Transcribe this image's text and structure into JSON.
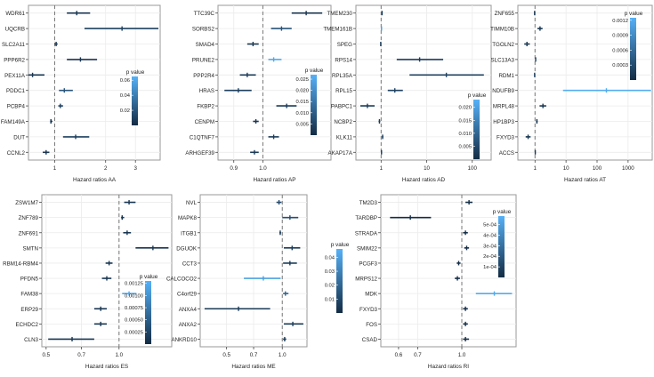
{
  "figure": {
    "legend_title": "p value"
  },
  "chart_data": [
    {
      "id": "AA",
      "type": "forest",
      "title": "",
      "xlabel": "Hazard ratios AA",
      "ylabel": "",
      "xscale": "log",
      "xlim": [
        0.7,
        4.2
      ],
      "xticks": [
        1,
        2,
        3
      ],
      "xtick_labels": [
        "1",
        "2",
        "3"
      ],
      "reference_line": 1,
      "legend": {
        "title": "p value",
        "placement": "right",
        "range": [
          0,
          0.065
        ],
        "ticks": [
          0.02,
          0.04,
          0.06
        ],
        "tick_labels": [
          "0.02",
          "0.04",
          "0.06"
        ]
      },
      "rows": [
        {
          "label": "WDR61",
          "hr": 1.35,
          "lower": 1.18,
          "upper": 1.62,
          "p": 0.005
        },
        {
          "label": "UQCRB",
          "hr": 2.5,
          "lower": 1.5,
          "upper": 4.1,
          "p": 0.01
        },
        {
          "label": "SLC2A11",
          "hr": 1.02,
          "lower": 1.0,
          "upper": 1.04,
          "p": 0.005
        },
        {
          "label": "PPP6R2",
          "hr": 1.42,
          "lower": 1.18,
          "upper": 1.78,
          "p": 0.005
        },
        {
          "label": "PEX11A",
          "hr": 0.74,
          "lower": 0.63,
          "upper": 0.87,
          "p": 0.005
        },
        {
          "label": "PDDC1",
          "hr": 1.14,
          "lower": 1.06,
          "upper": 1.28,
          "p": 0.02
        },
        {
          "label": "PCBP4",
          "hr": 1.08,
          "lower": 1.05,
          "upper": 1.12,
          "p": 0.01
        },
        {
          "label": "FAM149A",
          "hr": 0.95,
          "lower": 0.94,
          "upper": 0.97,
          "p": 0.005
        },
        {
          "label": "DUT",
          "hr": 1.33,
          "lower": 1.12,
          "upper": 1.6,
          "p": 0.01
        },
        {
          "label": "CCNL2",
          "hr": 0.89,
          "lower": 0.85,
          "upper": 0.93,
          "p": 0.005
        }
      ]
    },
    {
      "id": "AP",
      "type": "forest",
      "title": "",
      "xlabel": "Hazard ratios AP",
      "ylabel": "",
      "xscale": "log",
      "xlim": [
        0.85,
        1.28
      ],
      "xticks": [
        0.9,
        1.0
      ],
      "xtick_labels": [
        "0.9",
        "1.0"
      ],
      "reference_line": 1,
      "legend": {
        "title": "p value",
        "placement": "right",
        "range": [
          0,
          0.027
        ],
        "ticks": [
          0.005,
          0.01,
          0.015,
          0.02,
          0.025
        ],
        "tick_labels": [
          "0.005",
          "0.010",
          "0.015",
          "0.020",
          "0.025"
        ]
      },
      "rows": [
        {
          "label": "TTC39C",
          "hr": 1.17,
          "lower": 1.11,
          "upper": 1.24,
          "p": 0.002
        },
        {
          "label": "SORBS2",
          "hr": 1.07,
          "lower": 1.03,
          "upper": 1.11,
          "p": 0.008
        },
        {
          "label": "SMAD4",
          "hr": 0.965,
          "lower": 0.945,
          "upper": 0.985,
          "p": 0.002
        },
        {
          "label": "PRUNE2",
          "hr": 1.04,
          "lower": 1.02,
          "upper": 1.07,
          "p": 0.025
        },
        {
          "label": "PPP2R4",
          "hr": 0.945,
          "lower": 0.92,
          "upper": 0.975,
          "p": 0.003
        },
        {
          "label": "HRAS",
          "hr": 0.915,
          "lower": 0.87,
          "upper": 0.96,
          "p": 0.004
        },
        {
          "label": "FKBP2",
          "hr": 1.09,
          "lower": 1.05,
          "upper": 1.13,
          "p": 0.003
        },
        {
          "label": "CENPM",
          "hr": 0.975,
          "lower": 0.965,
          "upper": 0.985,
          "p": 0.002
        },
        {
          "label": "C1QTNF7",
          "hr": 1.04,
          "lower": 1.02,
          "upper": 1.06,
          "p": 0.003
        },
        {
          "label": "ARHGEF39",
          "hr": 0.97,
          "lower": 0.955,
          "upper": 0.985,
          "p": 0.003
        }
      ]
    },
    {
      "id": "AD",
      "type": "forest",
      "title": "",
      "xlabel": "Hazard ratios AD",
      "ylabel": "",
      "xscale": "log",
      "xlim": [
        0.28,
        260
      ],
      "xticks": [
        1,
        10,
        100
      ],
      "xtick_labels": [
        "1",
        "10",
        "100"
      ],
      "reference_line": 1,
      "legend": {
        "title": "p value",
        "placement": "right",
        "range": [
          0,
          0.023
        ],
        "ticks": [
          0.005,
          0.01,
          0.015,
          0.02
        ],
        "tick_labels": [
          "0.005",
          "0.010",
          "0.015",
          "0.020"
        ]
      },
      "rows": [
        {
          "label": "TMEM230",
          "hr": 1.05,
          "lower": 1.02,
          "upper": 1.08,
          "p": 0.003
        },
        {
          "label": "TMEM161B",
          "hr": 1.02,
          "lower": 1.0,
          "upper": 1.04,
          "p": 0.02
        },
        {
          "label": "SPEG",
          "hr": 0.98,
          "lower": 0.96,
          "upper": 1.0,
          "p": 0.003
        },
        {
          "label": "RPS14",
          "hr": 7.0,
          "lower": 2.2,
          "upper": 23,
          "p": 0.003
        },
        {
          "label": "RPL35A",
          "hr": 27,
          "lower": 4.2,
          "upper": 180,
          "p": 0.004
        },
        {
          "label": "RPL15",
          "hr": 2.0,
          "lower": 1.4,
          "upper": 3.0,
          "p": 0.004
        },
        {
          "label": "PABPC1",
          "hr": 0.5,
          "lower": 0.35,
          "upper": 0.72,
          "p": 0.003
        },
        {
          "label": "NCBP2",
          "hr": 0.92,
          "lower": 0.88,
          "upper": 0.96,
          "p": 0.003
        },
        {
          "label": "KLK11",
          "hr": 1.08,
          "lower": 1.04,
          "upper": 1.12,
          "p": 0.003
        },
        {
          "label": "AKAP17A",
          "hr": 1.02,
          "lower": 1.0,
          "upper": 1.04,
          "p": 0.003
        }
      ]
    },
    {
      "id": "AT",
      "type": "forest",
      "title": "",
      "xlabel": "Hazard ratios AT",
      "ylabel": "",
      "xscale": "log",
      "xlim": [
        0.28,
        6000
      ],
      "xticks": [
        1,
        10,
        100,
        1000
      ],
      "xtick_labels": [
        "1",
        "10",
        "100",
        "1000"
      ],
      "reference_line": 1,
      "legend": {
        "title": "p value",
        "placement": "top-right",
        "range": [
          0,
          0.00125
        ],
        "ticks": [
          0.0003,
          0.0006,
          0.0009,
          0.0012
        ],
        "tick_labels": [
          "0.0003",
          "0.0006",
          "0.0009",
          "0.0012"
        ]
      },
      "rows": [
        {
          "label": "ZNF655",
          "hr": 0.97,
          "lower": 0.94,
          "upper": 1.0,
          "p": 0.0001
        },
        {
          "label": "TIMM10B",
          "hr": 1.45,
          "lower": 1.2,
          "upper": 1.75,
          "p": 0.0001
        },
        {
          "label": "TGOLN2",
          "hr": 0.55,
          "lower": 0.45,
          "upper": 0.68,
          "p": 0.0001
        },
        {
          "label": "SLC13A3",
          "hr": 1.05,
          "lower": 1.02,
          "upper": 1.08,
          "p": 0.0002
        },
        {
          "label": "RDM1",
          "hr": 0.97,
          "lower": 0.95,
          "upper": 0.99,
          "p": 0.0002
        },
        {
          "label": "NDUFB9",
          "hr": 200,
          "lower": 8,
          "upper": 5500,
          "p": 0.0012
        },
        {
          "label": "MRPL48",
          "hr": 1.8,
          "lower": 1.4,
          "upper": 2.3,
          "p": 0.0001
        },
        {
          "label": "HP1BP3",
          "hr": 1.15,
          "lower": 1.08,
          "upper": 1.22,
          "p": 0.0001
        },
        {
          "label": "FXYD3",
          "hr": 0.6,
          "lower": 0.5,
          "upper": 0.72,
          "p": 0.0001
        },
        {
          "label": "ACCS",
          "hr": 1.02,
          "lower": 1.0,
          "upper": 1.04,
          "p": 0.0001
        }
      ]
    },
    {
      "id": "ES",
      "type": "forest",
      "title": "",
      "xlabel": "Hazard ratios ES",
      "ylabel": "",
      "xscale": "log",
      "xlim": [
        0.48,
        1.65
      ],
      "xticks": [
        0.5,
        0.7,
        1.0
      ],
      "xtick_labels": [
        "0.5",
        "0.7",
        "1.0"
      ],
      "reference_line": 1,
      "legend": {
        "title": "p value",
        "placement": "right",
        "range": [
          0,
          0.0013
        ],
        "ticks": [
          0.00025,
          0.0005,
          0.00075,
          0.001,
          0.00125
        ],
        "tick_labels": [
          "0.00025",
          "0.00050",
          "0.00075",
          "0.00100",
          "0.00125"
        ]
      },
      "rows": [
        {
          "label": "ZSW1M7",
          "hr": 1.1,
          "lower": 1.05,
          "upper": 1.17,
          "p": 0.0001
        },
        {
          "label": "ZNF789",
          "hr": 1.03,
          "lower": 1.02,
          "upper": 1.05,
          "p": 0.0001
        },
        {
          "label": "ZNF691",
          "hr": 1.08,
          "lower": 1.04,
          "upper": 1.12,
          "p": 0.0001
        },
        {
          "label": "SMTN",
          "hr": 1.38,
          "lower": 1.17,
          "upper": 1.6,
          "p": 0.0001
        },
        {
          "label": "RBM14-RBM4",
          "hr": 0.91,
          "lower": 0.88,
          "upper": 0.94,
          "p": 0.0001
        },
        {
          "label": "PFDN5",
          "hr": 0.89,
          "lower": 0.85,
          "upper": 0.93,
          "p": 0.0001
        },
        {
          "label": "FAM38",
          "hr": 1.1,
          "lower": 1.03,
          "upper": 1.18,
          "p": 0.0012
        },
        {
          "label": "ERP29",
          "hr": 0.84,
          "lower": 0.79,
          "upper": 0.89,
          "p": 0.0001
        },
        {
          "label": "ECHDC2",
          "hr": 0.84,
          "lower": 0.79,
          "upper": 0.89,
          "p": 0.0001
        },
        {
          "label": "CLN3",
          "hr": 0.64,
          "lower": 0.51,
          "upper": 0.79,
          "p": 0.0001
        }
      ]
    },
    {
      "id": "ME",
      "type": "forest",
      "title": "",
      "xlabel": "Hazard ratios ME",
      "ylabel": "",
      "xscale": "log",
      "xlim": [
        0.36,
        1.36
      ],
      "xticks": [
        0.5,
        0.7,
        1.0
      ],
      "xtick_labels": [
        "0.5",
        "0.7",
        "1.0"
      ],
      "reference_line": 1,
      "legend": {
        "title": "p value",
        "placement": "right",
        "range": [
          0,
          0.046
        ],
        "ticks": [
          0.01,
          0.02,
          0.03,
          0.04
        ],
        "tick_labels": [
          "0.01",
          "0.02",
          "0.03",
          "0.04"
        ]
      },
      "rows": [
        {
          "label": "NVL",
          "hr": 0.96,
          "lower": 0.93,
          "upper": 0.99,
          "p": 0.01
        },
        {
          "label": "MAPK8",
          "hr": 1.1,
          "lower": 1.0,
          "upper": 1.22,
          "p": 0.012
        },
        {
          "label": "ITGB1",
          "hr": 0.975,
          "lower": 0.965,
          "upper": 0.985,
          "p": 0.005
        },
        {
          "label": "DGUOK",
          "hr": 1.13,
          "lower": 1.02,
          "upper": 1.25,
          "p": 0.005
        },
        {
          "label": "CCT3",
          "hr": 1.1,
          "lower": 1.01,
          "upper": 1.2,
          "p": 0.005
        },
        {
          "label": "CALCOCO2",
          "hr": 0.79,
          "lower": 0.62,
          "upper": 0.98,
          "p": 0.04
        },
        {
          "label": "C4orf29",
          "hr": 1.04,
          "lower": 1.01,
          "upper": 1.08,
          "p": 0.02
        },
        {
          "label": "ANXA4",
          "hr": 0.58,
          "lower": 0.38,
          "upper": 0.86,
          "p": 0.005
        },
        {
          "label": "ANXA2",
          "hr": 1.14,
          "lower": 1.02,
          "upper": 1.3,
          "p": 0.005
        },
        {
          "label": "ANKRD10",
          "hr": 1.03,
          "lower": 1.01,
          "upper": 1.05,
          "p": 0.005
        }
      ]
    },
    {
      "id": "RI",
      "type": "forest",
      "title": "",
      "xlabel": "Hazard ratios RI",
      "ylabel": "",
      "xscale": "log",
      "xlim": [
        0.52,
        1.55
      ],
      "xticks": [
        0.6,
        0.7,
        1.0
      ],
      "xtick_labels": [
        "0.6",
        "0.7",
        "1.0"
      ],
      "reference_line": 1,
      "legend": {
        "title": "p value",
        "placement": "top-right",
        "range": [
          0,
          0.00058
        ],
        "ticks": [
          0.0001,
          0.0002,
          0.0003,
          0.0004,
          0.0005
        ],
        "tick_labels": [
          "1e-04",
          "2e-04",
          "3e-04",
          "4e-04",
          "5e-04"
        ]
      },
      "rows": [
        {
          "label": "TM2D3",
          "hr": 1.06,
          "lower": 1.03,
          "upper": 1.09,
          "p": 1e-05
        },
        {
          "label": "TARDBP",
          "hr": 0.66,
          "lower": 0.56,
          "upper": 0.78,
          "p": 1e-05
        },
        {
          "label": "STRADA",
          "hr": 1.03,
          "lower": 1.01,
          "upper": 1.05,
          "p": 1e-05
        },
        {
          "label": "SMIM22",
          "hr": 1.04,
          "lower": 1.02,
          "upper": 1.06,
          "p": 1e-05
        },
        {
          "label": "PCGF3",
          "hr": 0.975,
          "lower": 0.96,
          "upper": 0.99,
          "p": 1e-05
        },
        {
          "label": "MRPS12",
          "hr": 0.965,
          "lower": 0.945,
          "upper": 0.985,
          "p": 1e-05
        },
        {
          "label": "MDK",
          "hr": 1.3,
          "lower": 1.12,
          "upper": 1.5,
          "p": 0.00055
        },
        {
          "label": "FXYD3",
          "hr": 1.03,
          "lower": 1.01,
          "upper": 1.05,
          "p": 1e-05
        },
        {
          "label": "FOS",
          "hr": 1.03,
          "lower": 1.01,
          "upper": 1.05,
          "p": 1e-05
        },
        {
          "label": "CSAD",
          "hr": 1.03,
          "lower": 1.01,
          "upper": 1.06,
          "p": 1e-05
        }
      ]
    }
  ]
}
